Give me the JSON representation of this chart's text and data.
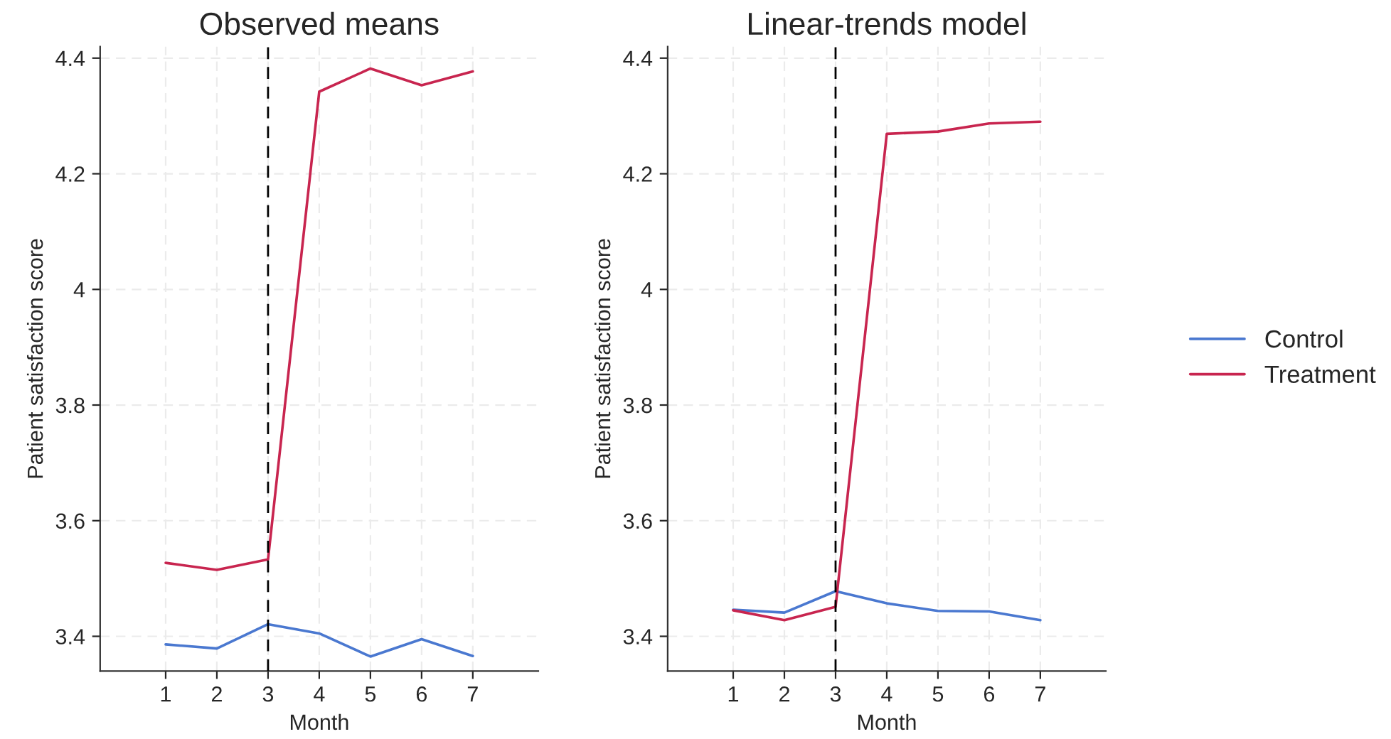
{
  "chart_data": [
    {
      "type": "line",
      "title": "Observed means",
      "xlabel": "Month",
      "ylabel": "Patient satisfaction score",
      "x": [
        1,
        2,
        3,
        4,
        5,
        6,
        7
      ],
      "series": [
        {
          "color": "#4a78d0",
          "values": [
            3.386,
            3.379,
            3.421,
            3.405,
            3.365,
            3.395,
            3.366
          ]
        },
        {
          "color": "#c8254f",
          "values": [
            3.527,
            3.515,
            3.533,
            4.342,
            4.382,
            4.353,
            4.377
          ]
        }
      ],
      "xlim": [
        -0.28,
        8.28
      ],
      "xticks": [
        1,
        2,
        3,
        4,
        5,
        6,
        7
      ],
      "ylim": [
        3.34,
        4.42
      ],
      "yticks": [
        3.4,
        3.6,
        3.8,
        4,
        4.2,
        4.4
      ],
      "ref_lines": [
        {
          "axis": "x",
          "value": 3,
          "color": "#000000",
          "line_style": "dashed"
        }
      ],
      "grid": true,
      "marker": "none",
      "line_style": "solid"
    },
    {
      "type": "line",
      "title": "Linear-trends model",
      "xlabel": "Month",
      "ylabel": "Patient satisfaction score",
      "x": [
        1,
        2,
        3,
        4,
        5,
        6,
        7
      ],
      "series": [
        {
          "name": "Control",
          "color": "#4a78d0",
          "values": [
            3.446,
            3.441,
            3.478,
            3.457,
            3.444,
            3.443,
            3.428
          ]
        },
        {
          "name": "Treatment",
          "color": "#c8254f",
          "values": [
            3.445,
            3.428,
            3.451,
            4.269,
            4.273,
            4.287,
            4.29
          ]
        }
      ],
      "xlim": [
        -0.28,
        8.28
      ],
      "xticks": [
        1,
        2,
        3,
        4,
        5,
        6,
        7
      ],
      "ylim": [
        3.34,
        4.42
      ],
      "yticks": [
        3.4,
        3.6,
        3.8,
        4,
        4.2,
        4.4
      ],
      "ref_lines": [
        {
          "axis": "x",
          "value": 3,
          "color": "#000000",
          "line_style": "dashed"
        }
      ],
      "grid": true,
      "marker": "none",
      "line_style": "solid",
      "legend": "right"
    }
  ]
}
